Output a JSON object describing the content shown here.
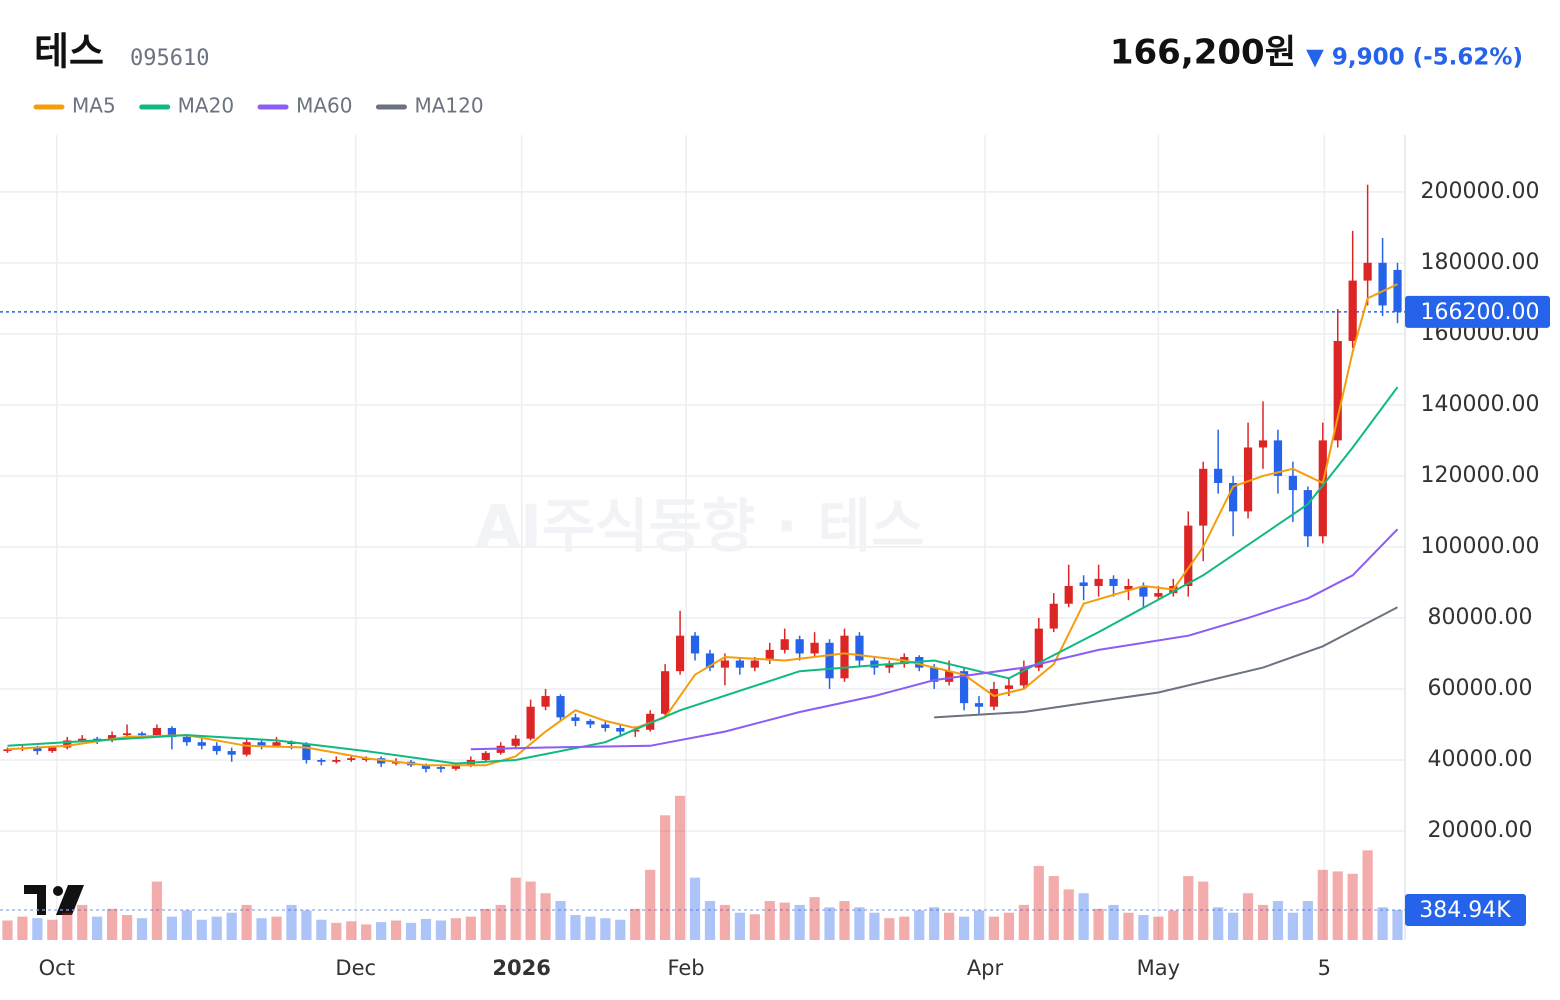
{
  "chart_data": {
    "type": "candlestick",
    "title": "테스",
    "code": "095610",
    "price": "166,200원",
    "change": "▼ 9,900 (-5.62%)",
    "watermark": "AI주식동향 · 테스",
    "open": [
      42500,
      43000,
      43500,
      42500,
      43500,
      45500,
      46000,
      45500,
      47000,
      47500,
      47000,
      49000,
      46500,
      45000,
      44000,
      42500,
      41500,
      45000,
      44000,
      45000,
      44500,
      40000,
      39500,
      40000,
      40000,
      40500,
      39000,
      39500,
      38500,
      38000,
      37500,
      38500,
      40000,
      42000,
      44000,
      46000,
      55000,
      58000,
      52000,
      51000,
      50000,
      49000,
      48000,
      48500,
      53000,
      65000,
      75000,
      70000,
      66000,
      68000,
      66000,
      68000,
      71000,
      74000,
      70000,
      73000,
      63000,
      75000,
      68000,
      66000,
      67000,
      69000,
      66000,
      62000,
      65000,
      56000,
      55000,
      60000,
      61000,
      66000,
      77000,
      84000,
      90000,
      89000,
      91000,
      88000,
      89000,
      86000,
      87000,
      89000,
      106000,
      122000,
      118000,
      110000,
      128000,
      130000,
      120000,
      116000,
      103000,
      130000,
      158000,
      175000,
      180000,
      178000
    ],
    "high": [
      43500,
      44000,
      44000,
      44000,
      46500,
      47000,
      46500,
      48000,
      50000,
      48000,
      50000,
      49500,
      47000,
      46000,
      45000,
      43500,
      46000,
      45500,
      46500,
      45500,
      45000,
      40500,
      41000,
      41500,
      41000,
      41000,
      40500,
      40000,
      39000,
      38500,
      39000,
      41000,
      42500,
      45000,
      47000,
      57000,
      60000,
      58500,
      53000,
      51500,
      51000,
      50000,
      49500,
      54000,
      67000,
      82000,
      76000,
      71000,
      70000,
      69000,
      69000,
      73000,
      77000,
      75000,
      76000,
      74000,
      77000,
      76000,
      69000,
      68000,
      70000,
      69500,
      67000,
      68000,
      66000,
      58000,
      62000,
      63000,
      68000,
      80000,
      87000,
      95000,
      92000,
      95000,
      92000,
      91000,
      90000,
      89000,
      91000,
      110000,
      124000,
      133000,
      120000,
      135000,
      141000,
      133000,
      124000,
      117000,
      135000,
      167000,
      189000,
      202000,
      187000,
      180000
    ],
    "low": [
      42000,
      42500,
      41500,
      42000,
      43000,
      45000,
      44500,
      45000,
      46500,
      46000,
      46500,
      43000,
      44000,
      43000,
      41500,
      39500,
      41000,
      43000,
      43500,
      43000,
      39000,
      38500,
      39000,
      39500,
      39500,
      38000,
      38500,
      38000,
      36500,
      36500,
      37000,
      38000,
      39500,
      41500,
      43500,
      45500,
      54000,
      51000,
      49500,
      49000,
      48000,
      46500,
      46500,
      48000,
      52500,
      64000,
      68000,
      65000,
      61000,
      64000,
      65000,
      67000,
      70000,
      68000,
      69000,
      60000,
      62000,
      66000,
      64000,
      64500,
      66000,
      65000,
      60000,
      61000,
      54000,
      53000,
      54000,
      58000,
      60000,
      65000,
      76000,
      83000,
      85000,
      86000,
      86000,
      85000,
      83000,
      85000,
      86000,
      86000,
      96000,
      115000,
      103000,
      108000,
      122000,
      115000,
      107000,
      100000,
      101000,
      128000,
      156000,
      168000,
      165000,
      163000
    ],
    "close": [
      43000,
      43500,
      42500,
      43500,
      45500,
      46000,
      45500,
      47000,
      47500,
      47000,
      49000,
      46500,
      45000,
      44000,
      42500,
      41500,
      45000,
      44000,
      45000,
      44500,
      40000,
      39500,
      40000,
      40500,
      40500,
      39000,
      39500,
      38500,
      37500,
      37500,
      38500,
      40000,
      42000,
      44000,
      46000,
      55000,
      58000,
      52000,
      51000,
      50000,
      49000,
      48000,
      48500,
      53000,
      65000,
      75000,
      70000,
      66000,
      68000,
      66000,
      68000,
      71000,
      74000,
      70000,
      73000,
      63000,
      75000,
      68000,
      66000,
      67000,
      69000,
      66000,
      62000,
      65000,
      56000,
      55000,
      60000,
      61000,
      66000,
      77000,
      84000,
      89000,
      89000,
      91000,
      89000,
      89000,
      86000,
      87000,
      89000,
      106000,
      122000,
      118000,
      110000,
      128000,
      130000,
      120000,
      116000,
      103000,
      130000,
      158000,
      175000,
      180000,
      168000,
      166200
    ],
    "volume": [
      250000,
      300000,
      280000,
      260000,
      350000,
      450000,
      300000,
      400000,
      320000,
      280000,
      750000,
      300000,
      380000,
      260000,
      300000,
      350000,
      450000,
      280000,
      300000,
      450000,
      380000,
      260000,
      220000,
      240000,
      200000,
      230000,
      250000,
      220000,
      270000,
      250000,
      280000,
      300000,
      400000,
      450000,
      800000,
      750000,
      600000,
      500000,
      320000,
      300000,
      280000,
      260000,
      400000,
      900000,
      1600000,
      1850000,
      800000,
      500000,
      450000,
      350000,
      330000,
      500000,
      480000,
      450000,
      550000,
      420000,
      500000,
      420000,
      350000,
      280000,
      300000,
      380000,
      420000,
      350000,
      300000,
      380000,
      300000,
      350000,
      450000,
      950000,
      820000,
      650000,
      600000,
      400000,
      450000,
      350000,
      320000,
      300000,
      380000,
      820000,
      750000,
      420000,
      350000,
      600000,
      450000,
      500000,
      350000,
      500000,
      900000,
      880000,
      850000,
      1150000,
      420000,
      384940
    ],
    "series": [
      {
        "name": "MA5",
        "color": "#f59e0b",
        "x": [
          0,
          4,
          8,
          12,
          16,
          20,
          24,
          28,
          32,
          34,
          36,
          38,
          40,
          42,
          44,
          46,
          48,
          52,
          56,
          60,
          64,
          66,
          68,
          70,
          72,
          76,
          78,
          80,
          82,
          84,
          86,
          88,
          90,
          91,
          93
        ],
        "values": [
          43000,
          44000,
          46500,
          47000,
          44000,
          43500,
          40500,
          38500,
          38500,
          41000,
          48000,
          54000,
          51000,
          49000,
          52000,
          64000,
          69000,
          68000,
          70000,
          68000,
          64000,
          58000,
          60000,
          67000,
          84000,
          89000,
          88000,
          100000,
          117000,
          120000,
          122000,
          118000,
          155000,
          170000,
          174000
        ]
      },
      {
        "name": "MA20",
        "color": "#10b981",
        "x": [
          0,
          6,
          12,
          18,
          24,
          30,
          34,
          40,
          45,
          53,
          62,
          67,
          73,
          80,
          87,
          90,
          93
        ],
        "values": [
          44000,
          45500,
          47000,
          45500,
          42500,
          39000,
          40000,
          45000,
          54000,
          65000,
          68000,
          63000,
          76000,
          92000,
          112000,
          128000,
          145000
        ]
      },
      {
        "name": "MA60",
        "color": "#8b5cf6",
        "x": [
          31,
          36,
          43,
          48,
          53,
          58,
          62,
          68,
          73,
          79,
          83,
          87,
          90,
          93
        ],
        "values": [
          43000,
          43500,
          44000,
          48000,
          53500,
          58000,
          62500,
          66000,
          71000,
          75000,
          80000,
          85500,
          92000,
          105000
        ]
      },
      {
        "name": "MA120",
        "color": "#6b7280",
        "x": [
          62,
          68,
          72,
          77,
          84,
          88,
          93
        ],
        "values": [
          52000,
          53500,
          56000,
          59000,
          66000,
          72000,
          83000
        ]
      }
    ],
    "xlim": [
      -0.5,
      93.5
    ],
    "xticks": [
      {
        "value": 3.3,
        "label": "Oct"
      },
      {
        "value": 23.3,
        "label": "Dec"
      },
      {
        "value": 34.4,
        "label": "2026"
      },
      {
        "value": 45.4,
        "label": "Feb"
      },
      {
        "value": 65.4,
        "label": "Apr"
      },
      {
        "value": 77,
        "label": "May"
      },
      {
        "value": 88.1,
        "label": "5"
      }
    ],
    "ylim": [
      -10700,
      216000
    ],
    "yticks": [
      {
        "value": 20000,
        "label": "20000.00"
      },
      {
        "value": 40000,
        "label": "40000.00"
      },
      {
        "value": 60000,
        "label": "60000.00"
      },
      {
        "value": 80000,
        "label": "80000.00"
      },
      {
        "value": 100000,
        "label": "100000.00"
      },
      {
        "value": 120000,
        "label": "120000.00"
      },
      {
        "value": 140000,
        "label": "140000.00"
      },
      {
        "value": 160000,
        "label": "160000.00"
      },
      {
        "value": 180000,
        "label": "180000.00"
      },
      {
        "value": 200000,
        "label": "200000.00"
      }
    ],
    "volume_lim": [
      0,
      3849400
    ],
    "last_price": {
      "value": 166200,
      "label": "166200.00"
    },
    "last_volume": {
      "value": 384940,
      "label": "384.94K"
    },
    "up_color": "#dc2626",
    "down_color": "#2563eb",
    "grid": true
  }
}
